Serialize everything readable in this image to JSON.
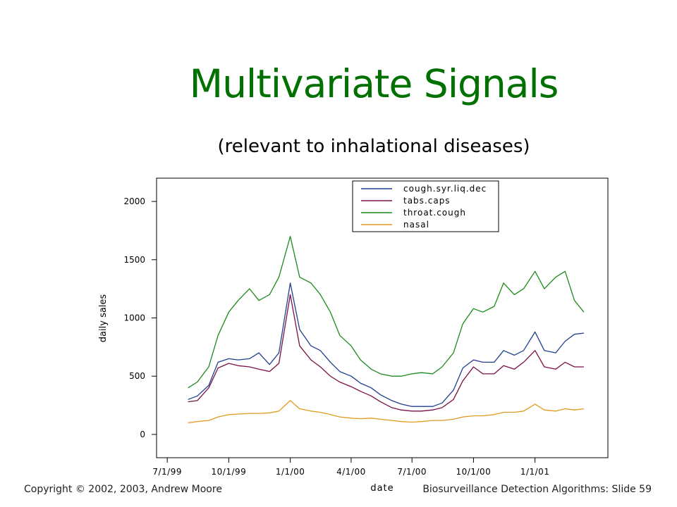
{
  "slide": {
    "title": "Multivariate Signals",
    "subtitle": "(relevant to inhalational diseases)"
  },
  "footer": {
    "copyright": "Copyright © 2002, 2003, Andrew  Moore",
    "slide_info": "Biosurveillance Detection Algorithms: Slide 59"
  },
  "chart_data": {
    "type": "line",
    "xlabel": "date",
    "ylabel": "daily sales",
    "x_range": [
      "1999-06-15",
      "2001-04-20"
    ],
    "ylim": [
      -200,
      2200
    ],
    "x_ticks": [
      {
        "date": "1999-07-01",
        "label": "7/1/99"
      },
      {
        "date": "1999-10-01",
        "label": "10/1/99"
      },
      {
        "date": "2000-01-01",
        "label": "1/1/00"
      },
      {
        "date": "2000-04-01",
        "label": "4/1/00"
      },
      {
        "date": "2000-07-01",
        "label": "7/1/00"
      },
      {
        "date": "2000-10-01",
        "label": "10/1/00"
      },
      {
        "date": "2001-01-01",
        "label": "1/1/01"
      }
    ],
    "y_ticks": [
      0,
      500,
      1000,
      1500,
      2000
    ],
    "grid": false,
    "legend_position": "top-center",
    "series": [
      {
        "name": "cough.syr.liq.dec",
        "color": "#1f3f8f",
        "points": [
          [
            "1999-08-01",
            300
          ],
          [
            "1999-08-15",
            330
          ],
          [
            "1999-09-01",
            420
          ],
          [
            "1999-09-15",
            620
          ],
          [
            "1999-10-01",
            650
          ],
          [
            "1999-10-15",
            640
          ],
          [
            "1999-11-01",
            650
          ],
          [
            "1999-11-15",
            700
          ],
          [
            "1999-12-01",
            600
          ],
          [
            "1999-12-15",
            700
          ],
          [
            "2000-01-01",
            1300
          ],
          [
            "2000-01-15",
            900
          ],
          [
            "2000-02-01",
            760
          ],
          [
            "2000-02-15",
            720
          ],
          [
            "2000-03-01",
            620
          ],
          [
            "2000-03-15",
            540
          ],
          [
            "2000-04-01",
            500
          ],
          [
            "2000-04-15",
            440
          ],
          [
            "2000-05-01",
            400
          ],
          [
            "2000-05-15",
            340
          ],
          [
            "2000-06-01",
            290
          ],
          [
            "2000-06-15",
            260
          ],
          [
            "2000-07-01",
            240
          ],
          [
            "2000-07-15",
            240
          ],
          [
            "2000-08-01",
            240
          ],
          [
            "2000-08-15",
            270
          ],
          [
            "2000-09-01",
            380
          ],
          [
            "2000-09-15",
            570
          ],
          [
            "2000-10-01",
            640
          ],
          [
            "2000-10-15",
            620
          ],
          [
            "2000-11-01",
            620
          ],
          [
            "2000-11-15",
            720
          ],
          [
            "2000-12-01",
            680
          ],
          [
            "2000-12-15",
            720
          ],
          [
            "2001-01-01",
            880
          ],
          [
            "2001-01-15",
            720
          ],
          [
            "2001-02-01",
            700
          ],
          [
            "2001-02-15",
            800
          ],
          [
            "2001-03-01",
            860
          ],
          [
            "2001-03-15",
            870
          ]
        ]
      },
      {
        "name": "tabs.caps",
        "color": "#7a1048",
        "points": [
          [
            "1999-08-01",
            280
          ],
          [
            "1999-08-15",
            290
          ],
          [
            "1999-09-01",
            400
          ],
          [
            "1999-09-15",
            570
          ],
          [
            "1999-10-01",
            610
          ],
          [
            "1999-10-15",
            590
          ],
          [
            "1999-11-01",
            580
          ],
          [
            "1999-11-15",
            560
          ],
          [
            "1999-12-01",
            540
          ],
          [
            "1999-12-15",
            610
          ],
          [
            "2000-01-01",
            1200
          ],
          [
            "2000-01-15",
            760
          ],
          [
            "2000-02-01",
            640
          ],
          [
            "2000-02-15",
            580
          ],
          [
            "2000-03-01",
            500
          ],
          [
            "2000-03-15",
            450
          ],
          [
            "2000-04-01",
            410
          ],
          [
            "2000-04-15",
            370
          ],
          [
            "2000-05-01",
            330
          ],
          [
            "2000-05-15",
            280
          ],
          [
            "2000-06-01",
            230
          ],
          [
            "2000-06-15",
            210
          ],
          [
            "2000-07-01",
            200
          ],
          [
            "2000-07-15",
            200
          ],
          [
            "2000-08-01",
            210
          ],
          [
            "2000-08-15",
            230
          ],
          [
            "2000-09-01",
            300
          ],
          [
            "2000-09-15",
            460
          ],
          [
            "2000-10-01",
            580
          ],
          [
            "2000-10-15",
            520
          ],
          [
            "2000-11-01",
            520
          ],
          [
            "2000-11-15",
            590
          ],
          [
            "2000-12-01",
            560
          ],
          [
            "2000-12-15",
            620
          ],
          [
            "2001-01-01",
            720
          ],
          [
            "2001-01-15",
            580
          ],
          [
            "2001-02-01",
            560
          ],
          [
            "2001-02-15",
            620
          ],
          [
            "2001-03-01",
            580
          ],
          [
            "2001-03-15",
            580
          ]
        ]
      },
      {
        "name": "throat.cough",
        "color": "#1a8a1a",
        "points": [
          [
            "1999-08-01",
            400
          ],
          [
            "1999-08-15",
            450
          ],
          [
            "1999-09-01",
            580
          ],
          [
            "1999-09-15",
            850
          ],
          [
            "1999-10-01",
            1050
          ],
          [
            "1999-10-15",
            1150
          ],
          [
            "1999-11-01",
            1250
          ],
          [
            "1999-11-15",
            1150
          ],
          [
            "1999-12-01",
            1200
          ],
          [
            "1999-12-15",
            1350
          ],
          [
            "2000-01-01",
            1700
          ],
          [
            "2000-01-15",
            1350
          ],
          [
            "2000-02-01",
            1300
          ],
          [
            "2000-02-15",
            1200
          ],
          [
            "2000-03-01",
            1050
          ],
          [
            "2000-03-15",
            850
          ],
          [
            "2000-04-01",
            760
          ],
          [
            "2000-04-15",
            640
          ],
          [
            "2000-05-01",
            560
          ],
          [
            "2000-05-15",
            520
          ],
          [
            "2000-06-01",
            500
          ],
          [
            "2000-06-15",
            500
          ],
          [
            "2000-07-01",
            520
          ],
          [
            "2000-07-15",
            530
          ],
          [
            "2000-08-01",
            520
          ],
          [
            "2000-08-15",
            580
          ],
          [
            "2000-09-01",
            700
          ],
          [
            "2000-09-15",
            950
          ],
          [
            "2000-10-01",
            1080
          ],
          [
            "2000-10-15",
            1050
          ],
          [
            "2000-11-01",
            1100
          ],
          [
            "2000-11-15",
            1300
          ],
          [
            "2000-12-01",
            1200
          ],
          [
            "2000-12-15",
            1250
          ],
          [
            "2001-01-01",
            1400
          ],
          [
            "2001-01-15",
            1250
          ],
          [
            "2001-02-01",
            1350
          ],
          [
            "2001-02-15",
            1400
          ],
          [
            "2001-03-01",
            1150
          ],
          [
            "2001-03-15",
            1050
          ]
        ]
      },
      {
        "name": "nasal",
        "color": "#e09a20",
        "points": [
          [
            "1999-08-01",
            100
          ],
          [
            "1999-08-15",
            110
          ],
          [
            "1999-09-01",
            120
          ],
          [
            "1999-09-15",
            150
          ],
          [
            "1999-10-01",
            170
          ],
          [
            "1999-10-15",
            175
          ],
          [
            "1999-11-01",
            180
          ],
          [
            "1999-11-15",
            180
          ],
          [
            "1999-12-01",
            185
          ],
          [
            "1999-12-15",
            200
          ],
          [
            "2000-01-01",
            290
          ],
          [
            "2000-01-15",
            220
          ],
          [
            "2000-02-01",
            200
          ],
          [
            "2000-02-15",
            190
          ],
          [
            "2000-03-01",
            170
          ],
          [
            "2000-03-15",
            150
          ],
          [
            "2000-04-01",
            140
          ],
          [
            "2000-04-15",
            135
          ],
          [
            "2000-05-01",
            140
          ],
          [
            "2000-05-15",
            130
          ],
          [
            "2000-06-01",
            120
          ],
          [
            "2000-06-15",
            110
          ],
          [
            "2000-07-01",
            105
          ],
          [
            "2000-07-15",
            110
          ],
          [
            "2000-08-01",
            120
          ],
          [
            "2000-08-15",
            120
          ],
          [
            "2000-09-01",
            130
          ],
          [
            "2000-09-15",
            150
          ],
          [
            "2000-10-01",
            160
          ],
          [
            "2000-10-15",
            160
          ],
          [
            "2000-11-01",
            170
          ],
          [
            "2000-11-15",
            190
          ],
          [
            "2000-12-01",
            190
          ],
          [
            "2000-12-15",
            200
          ],
          [
            "2001-01-01",
            260
          ],
          [
            "2001-01-15",
            210
          ],
          [
            "2001-02-01",
            200
          ],
          [
            "2001-02-15",
            220
          ],
          [
            "2001-03-01",
            210
          ],
          [
            "2001-03-15",
            220
          ]
        ]
      }
    ]
  }
}
